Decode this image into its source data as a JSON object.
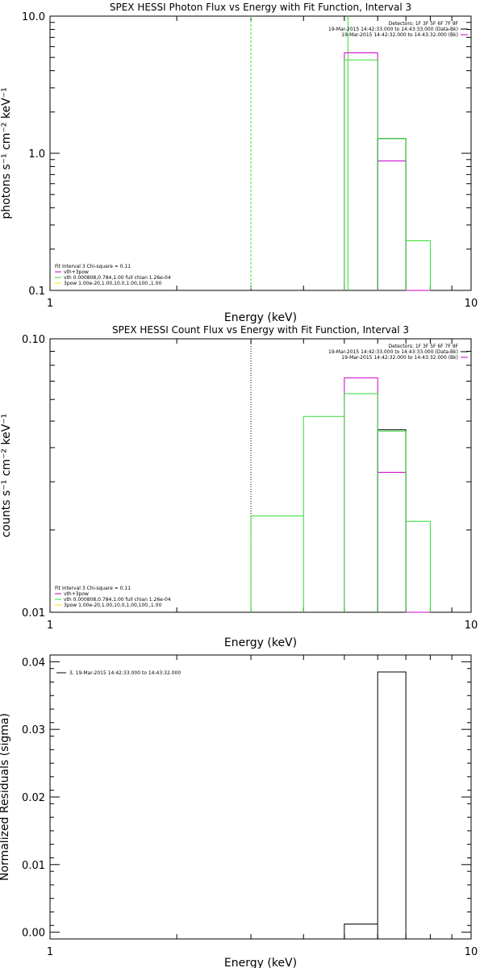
{
  "colors": {
    "axis": "#000000",
    "black": "#000000",
    "magenta": "#cc00cc",
    "green": "#33dd33"
  },
  "chart_data": [
    {
      "type": "line",
      "title": "SPEX HESSI Photon Flux vs Energy with Fit Function, Interval 3",
      "xlabel": "Energy (keV)",
      "ylabel": "photons s⁻¹ cm⁻² keV⁻¹",
      "x_scale": "log",
      "y_scale": "log",
      "xlim": [
        1,
        10
      ],
      "ylim": [
        0.1,
        10
      ],
      "x_ticks": [
        {
          "value": 1,
          "label": "1"
        },
        {
          "value": 10,
          "label": "10"
        }
      ],
      "y_ticks": [
        {
          "value": 0.1,
          "label": "0.1"
        },
        {
          "value": 1,
          "label": "1.0"
        },
        {
          "value": 10,
          "label": "10.0"
        }
      ],
      "vlines": [
        {
          "x": 3.0,
          "color": "green",
          "style": "dash"
        },
        {
          "x": 5.1,
          "color": "green",
          "style": "solid"
        }
      ],
      "legend_top": [
        "Detectors: 1F 3F 5F 6F 7F 9F",
        "19-Mar-2015 14:42:33.000 to 14:43:33.000 (Data-Bk)",
        "19-Mar-2015 14:42:32.000 to 14:43:32.000 (Bk)"
      ],
      "legend_top_colors": [
        "none",
        "black",
        "magenta"
      ],
      "legend_bottom": [
        "Fit Interval 3   Chi-square = 0.11",
        "vth+3pow",
        "vth 0.000808,0.784,1.00  full chian 1.26e-04",
        "3pow 1.00e-20,1.00,10.0,1.00,100.,1.00"
      ],
      "legend_bottom_colors": [
        "none",
        "magenta",
        "green",
        "yellow"
      ],
      "series": [
        {
          "name": "19-Mar-2015 14:42:33.000 to 14:43:33.000 (Data-Bk)",
          "color": "black",
          "steps": [
            [
              6.0,
              7.0,
              1.28
            ]
          ]
        },
        {
          "name": "vth+3pow",
          "color": "magenta",
          "steps": [
            [
              5.0,
              6.0,
              5.4
            ],
            [
              6.0,
              7.0,
              0.88
            ],
            [
              7.0,
              8.0,
              0.1
            ]
          ]
        },
        {
          "name": "vth 0.000808,0.784,1.00  full chian 1.26e-04",
          "color": "green",
          "steps": [
            [
              5.0,
              6.0,
              4.8
            ],
            [
              6.0,
              7.0,
              1.28
            ],
            [
              7.0,
              8.0,
              0.23
            ]
          ]
        }
      ]
    },
    {
      "type": "line",
      "title": "SPEX HESSI Count Flux vs Energy with Fit Function, Interval 3",
      "xlabel": "Energy (keV)",
      "ylabel": "counts s⁻¹ cm⁻² keV⁻¹",
      "x_scale": "log",
      "y_scale": "log",
      "xlim": [
        1,
        10
      ],
      "ylim": [
        0.01,
        0.1
      ],
      "x_ticks": [
        {
          "value": 1,
          "label": "1"
        },
        {
          "value": 10,
          "label": "10"
        }
      ],
      "y_ticks": [
        {
          "value": 0.01,
          "label": "0.01"
        },
        {
          "value": 0.1,
          "label": "0.10"
        }
      ],
      "vlines": [
        {
          "x": 3.0,
          "color": "black",
          "style": "dot"
        }
      ],
      "legend_top": [
        "Detectors: 1F 3F 5F 6F 7F 9F",
        "19-Mar-2015 14:42:33.000 to 14:43:33.000 (Data-Bk)",
        "19-Mar-2015 14:42:32.000 to 14:43:32.000 (Bk)"
      ],
      "legend_top_colors": [
        "none",
        "black",
        "magenta"
      ],
      "legend_bottom": [
        "Fit Interval 3   Chi-square = 0.11",
        "vth+3pow",
        "vth 0.000808,0.784,1.00  full chian 1.26e-04",
        "3pow 1.00e-20,1.00,10.0,1.00,100.,1.00"
      ],
      "legend_bottom_colors": [
        "none",
        "magenta",
        "green",
        "yellow"
      ],
      "series": [
        {
          "name": "19-Mar-2015 14:42:33.000 to 14:43:33.000 (Data-Bk)",
          "color": "black",
          "steps": [
            [
              6.0,
              7.0,
              0.0465
            ]
          ]
        },
        {
          "name": "vth+3pow",
          "color": "magenta",
          "steps": [
            [
              5.0,
              6.0,
              0.072
            ],
            [
              6.0,
              7.0,
              0.0325
            ],
            [
              7.0,
              8.0,
              0.01
            ]
          ]
        },
        {
          "name": "vth 0.000808,0.784,1.00  full chian 1.26e-04",
          "color": "green",
          "steps": [
            [
              3.0,
              4.0,
              0.0225
            ],
            [
              4.0,
              5.0,
              0.052
            ],
            [
              5.0,
              6.0,
              0.063
            ],
            [
              6.0,
              7.0,
              0.046
            ],
            [
              7.0,
              8.0,
              0.0215
            ]
          ]
        }
      ]
    },
    {
      "type": "line",
      "title": "",
      "xlabel": "Energy (keV)",
      "ylabel": "Normalized Residuals (sigma)",
      "x_scale": "log",
      "y_scale": "linear",
      "xlim": [
        1,
        10
      ],
      "ylim": [
        -0.001,
        0.041
      ],
      "x_ticks": [
        {
          "value": 1,
          "label": "1"
        },
        {
          "value": 10,
          "label": "10"
        }
      ],
      "y_ticks": [
        {
          "value": 0.0,
          "label": "0.00"
        },
        {
          "value": 0.01,
          "label": "0.01"
        },
        {
          "value": 0.02,
          "label": "0.02"
        },
        {
          "value": 0.03,
          "label": "0.03"
        },
        {
          "value": 0.04,
          "label": "0.04"
        }
      ],
      "vlines": [],
      "legend_top": [
        "3, 19-Mar-2015 14:42:33.000 to 14:43:32.000"
      ],
      "legend_top_colors": [
        "black"
      ],
      "legend_bottom": [],
      "legend_bottom_colors": [],
      "series": [
        {
          "name": "3, 19-Mar-2015 14:42:33.000 to 14:43:32.000",
          "color": "black",
          "steps": [
            [
              5.0,
              6.0,
              0.0012
            ],
            [
              6.0,
              7.0,
              0.0385
            ]
          ]
        }
      ]
    }
  ]
}
